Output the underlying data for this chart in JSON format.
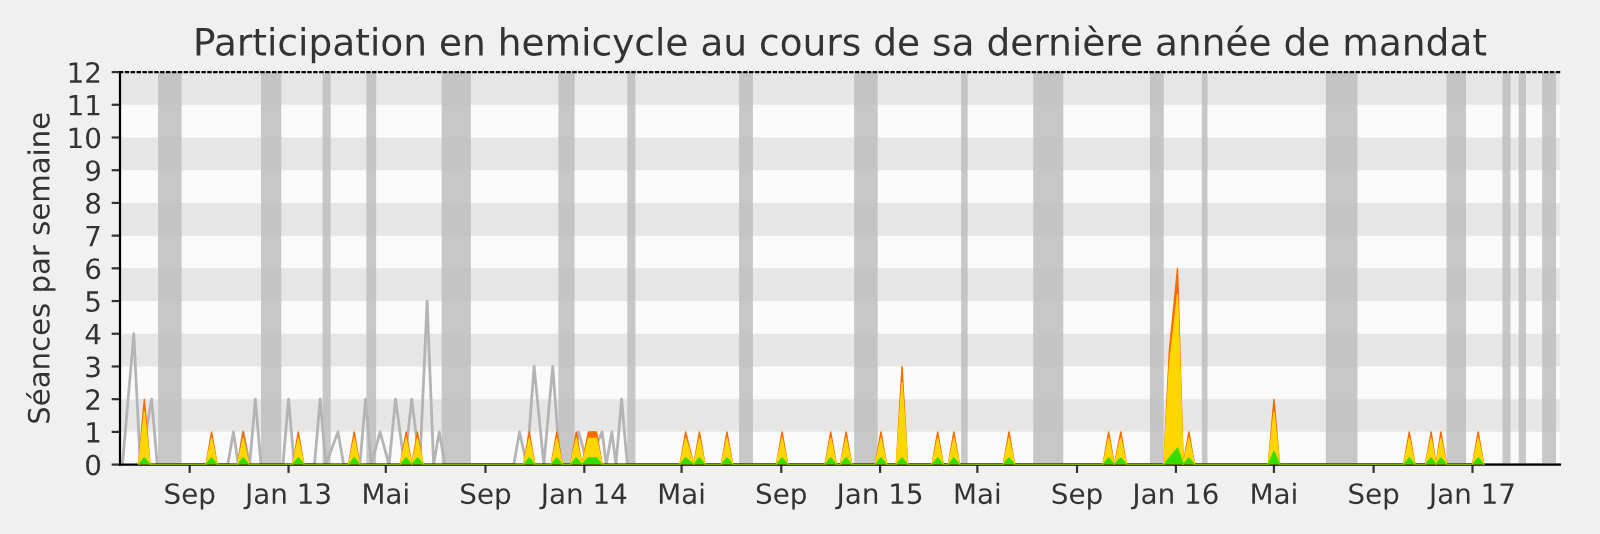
{
  "chart_data": {
    "type": "area",
    "title": "Participation en hemicycle au cours de sa dernière année de mandat",
    "ylabel": "Séances par semaine",
    "xlim": [
      "2012-06-07",
      "2017-04-19"
    ],
    "ylim": [
      0,
      12
    ],
    "yticks": [
      0,
      1,
      2,
      3,
      4,
      5,
      6,
      7,
      8,
      9,
      10,
      11,
      12
    ],
    "xticks": [
      {
        "value": "2012-09-01",
        "label": "Sep"
      },
      {
        "value": "2013-01-01",
        "label": "Jan 13"
      },
      {
        "value": "2013-05-01",
        "label": "Mai"
      },
      {
        "value": "2013-09-01",
        "label": "Sep"
      },
      {
        "value": "2014-01-01",
        "label": "Jan 14"
      },
      {
        "value": "2014-05-01",
        "label": "Mai"
      },
      {
        "value": "2014-09-01",
        "label": "Sep"
      },
      {
        "value": "2015-01-01",
        "label": "Jan 15"
      },
      {
        "value": "2015-05-01",
        "label": "Mai"
      },
      {
        "value": "2015-09-01",
        "label": "Sep"
      },
      {
        "value": "2016-01-01",
        "label": "Jan 16"
      },
      {
        "value": "2016-05-01",
        "label": "Mai"
      },
      {
        "value": "2016-09-01",
        "label": "Sep"
      },
      {
        "value": "2017-01-01",
        "label": "Jan 17"
      }
    ],
    "grid": false,
    "bands": [
      {
        "axis": "y",
        "from": 1,
        "to": 2,
        "color": "#e6e6e6"
      },
      {
        "axis": "y",
        "from": 3,
        "to": 4,
        "color": "#e6e6e6"
      },
      {
        "axis": "y",
        "from": 5,
        "to": 6,
        "color": "#e6e6e6"
      },
      {
        "axis": "y",
        "from": 7,
        "to": 8,
        "color": "#e6e6e6"
      },
      {
        "axis": "y",
        "from": 9,
        "to": 10,
        "color": "#e6e6e6"
      },
      {
        "axis": "y",
        "from": 11,
        "to": 12,
        "color": "#e6e6e6"
      },
      {
        "axis": "x",
        "from": "2012-07-24",
        "to": "2012-08-22",
        "color": "#bdbdbd"
      },
      {
        "axis": "x",
        "from": "2012-11-28",
        "to": "2012-12-23",
        "color": "#bdbdbd"
      },
      {
        "axis": "x",
        "from": "2013-02-12",
        "to": "2013-02-22",
        "color": "#bdbdbd"
      },
      {
        "axis": "x",
        "from": "2013-04-07",
        "to": "2013-04-19",
        "color": "#bdbdbd"
      },
      {
        "axis": "x",
        "from": "2013-07-09",
        "to": "2013-08-14",
        "color": "#bdbdbd"
      },
      {
        "axis": "x",
        "from": "2013-11-30",
        "to": "2013-12-20",
        "color": "#bdbdbd"
      },
      {
        "axis": "x",
        "from": "2014-02-23",
        "to": "2014-03-05",
        "color": "#bdbdbd"
      },
      {
        "axis": "x",
        "from": "2014-07-11",
        "to": "2014-07-28",
        "color": "#bdbdbd"
      },
      {
        "axis": "x",
        "from": "2014-11-30",
        "to": "2014-12-29",
        "color": "#bdbdbd"
      },
      {
        "axis": "x",
        "from": "2015-04-11",
        "to": "2015-04-19",
        "color": "#bdbdbd"
      },
      {
        "axis": "x",
        "from": "2015-07-09",
        "to": "2015-08-15",
        "color": "#bdbdbd"
      },
      {
        "axis": "x",
        "from": "2015-11-30",
        "to": "2015-12-17",
        "color": "#bdbdbd"
      },
      {
        "axis": "x",
        "from": "2016-02-02",
        "to": "2016-02-09",
        "color": "#bdbdbd"
      },
      {
        "axis": "x",
        "from": "2016-07-04",
        "to": "2016-08-12",
        "color": "#bdbdbd"
      },
      {
        "axis": "x",
        "from": "2016-11-30",
        "to": "2016-12-24",
        "color": "#bdbdbd"
      },
      {
        "axis": "x",
        "from": "2017-02-07",
        "to": "2017-02-17",
        "color": "#bdbdbd"
      },
      {
        "axis": "x",
        "from": "2017-02-27",
        "to": "2017-03-08",
        "color": "#bdbdbd"
      },
      {
        "axis": "x",
        "from": "2017-03-28",
        "to": "2017-04-14",
        "color": "#bdbdbd"
      }
    ],
    "x": [
      "2012-06-30",
      "2012-07-07",
      "2012-07-14",
      "2012-09-21",
      "2012-09-28",
      "2012-10-05",
      "2012-10-30",
      "2012-11-06",
      "2012-11-13",
      "2013-01-06",
      "2013-01-13",
      "2013-01-20",
      "2013-03-16",
      "2013-03-23",
      "2013-03-30",
      "2013-05-19",
      "2013-05-26",
      "2013-06-02",
      "2013-06-09",
      "2013-06-16",
      "2013-10-18",
      "2013-10-25",
      "2013-11-01",
      "2013-11-21",
      "2013-11-28",
      "2013-12-05",
      "2013-12-15",
      "2013-12-22",
      "2013-12-29",
      "2014-01-06",
      "2014-01-16",
      "2014-01-23",
      "2014-04-29",
      "2014-05-06",
      "2014-05-16",
      "2014-05-23",
      "2014-05-30",
      "2014-06-19",
      "2014-06-26",
      "2014-07-03",
      "2014-08-26",
      "2014-09-02",
      "2014-09-09",
      "2014-10-25",
      "2014-11-01",
      "2014-11-08",
      "2014-11-13",
      "2014-11-20",
      "2014-11-27",
      "2014-12-26",
      "2015-01-02",
      "2015-01-09",
      "2015-01-21",
      "2015-01-28",
      "2015-02-04",
      "2015-03-06",
      "2015-03-13",
      "2015-03-20",
      "2015-03-26",
      "2015-04-02",
      "2015-04-09",
      "2015-06-02",
      "2015-06-09",
      "2015-06-16",
      "2015-10-03",
      "2015-10-10",
      "2015-10-17",
      "2015-10-25",
      "2015-11-01",
      "2015-12-17",
      "2015-12-24",
      "2016-01-03",
      "2016-01-10",
      "2016-01-17",
      "2016-01-24",
      "2016-04-24",
      "2016-05-01",
      "2016-05-08",
      "2016-10-08",
      "2016-10-15",
      "2016-10-22",
      "2016-11-04",
      "2016-11-11",
      "2016-11-17",
      "2016-11-23",
      "2016-11-30",
      "2017-01-01",
      "2017-01-08",
      "2017-01-15"
    ],
    "series": [
      {
        "type": "line",
        "color": "#b4b4b4",
        "x": [
          "2012-06-10",
          "2012-06-24",
          "2012-07-02",
          "2012-07-16",
          "2012-07-23",
          "2012-10-18",
          "2012-10-25",
          "2012-10-31",
          "2012-11-06",
          "2012-11-14",
          "2012-11-21",
          "2012-11-28",
          "2012-12-25",
          "2013-01-01",
          "2013-01-08",
          "2013-02-02",
          "2013-02-09",
          "2013-02-16",
          "2013-03-03",
          "2013-03-10",
          "2013-03-30",
          "2013-04-06",
          "2013-04-13",
          "2013-04-24",
          "2013-05-05",
          "2013-05-13",
          "2013-05-24",
          "2013-06-02",
          "2013-06-12",
          "2013-06-21",
          "2013-06-29",
          "2013-07-06",
          "2013-07-13",
          "2013-10-06",
          "2013-10-13",
          "2013-10-22",
          "2013-10-31",
          "2013-11-12",
          "2013-11-23",
          "2013-12-02",
          "2013-12-18",
          "2013-12-25",
          "2014-01-05",
          "2014-01-23",
          "2014-01-28",
          "2014-02-04",
          "2014-02-09",
          "2014-02-16",
          "2014-02-23",
          "2017-04-19"
        ],
        "values": [
          0,
          4,
          0,
          2,
          0,
          0,
          1,
          0,
          1,
          0,
          2,
          0,
          0,
          2,
          0,
          0,
          2,
          0,
          1,
          0,
          0,
          2,
          0,
          1,
          0,
          2,
          0,
          2,
          0,
          5,
          0,
          1,
          0,
          0,
          1,
          0,
          3,
          0,
          3,
          0,
          0,
          1,
          0,
          1,
          0,
          1,
          0,
          2,
          0,
          0
        ]
      },
      {
        "color": "#ff6a00",
        "values": [
          0,
          2,
          0,
          0,
          1,
          0,
          0,
          1,
          0,
          0,
          1,
          0,
          0,
          1,
          0,
          0,
          1,
          0,
          1,
          0,
          0,
          1,
          0,
          0,
          1,
          0,
          0,
          1,
          0,
          1,
          1,
          0,
          0,
          1,
          0,
          1,
          0,
          0,
          1,
          0,
          0,
          1,
          0,
          0,
          1,
          0,
          0,
          1,
          0,
          0,
          1,
          0,
          0,
          3,
          0,
          0,
          1,
          0,
          0,
          1,
          0,
          0,
          1,
          0,
          0,
          1,
          0,
          1,
          0,
          0,
          3.5,
          6,
          0,
          1,
          0,
          0,
          2,
          0,
          0,
          1,
          0,
          0,
          1,
          0,
          1,
          0,
          0,
          1,
          0
        ]
      },
      {
        "color": "#ffd700",
        "values": [
          0,
          1.6,
          0,
          0,
          0.8,
          0,
          0,
          0.8,
          0,
          0,
          0.8,
          0,
          0,
          0.8,
          0,
          0,
          0.8,
          0,
          0.8,
          0,
          0,
          0.8,
          0,
          0,
          0.8,
          0,
          0,
          0.8,
          0,
          0.8,
          0.8,
          0,
          0,
          0.8,
          0,
          0.8,
          0,
          0,
          0.8,
          0,
          0,
          0.8,
          0,
          0,
          0.8,
          0,
          0,
          0.8,
          0,
          0,
          0.8,
          0,
          0,
          2.5,
          0,
          0,
          0.8,
          0,
          0,
          0.8,
          0,
          0,
          0.8,
          0,
          0,
          0.8,
          0,
          0.8,
          0,
          0,
          3,
          5.2,
          0,
          0.8,
          0,
          0,
          1.6,
          0,
          0,
          0.8,
          0,
          0,
          0.8,
          0,
          0.8,
          0,
          0,
          0.8,
          0
        ]
      },
      {
        "color": "#33dd00",
        "values": [
          0,
          0.2,
          0,
          0,
          0.2,
          0,
          0,
          0.2,
          0,
          0,
          0.2,
          0,
          0,
          0.2,
          0,
          0,
          0.2,
          0,
          0.2,
          0,
          0,
          0.2,
          0,
          0,
          0.2,
          0,
          0,
          0.2,
          0,
          0.2,
          0.2,
          0,
          0,
          0.2,
          0,
          0.2,
          0,
          0,
          0.2,
          0,
          0,
          0.2,
          0,
          0,
          0.2,
          0,
          0,
          0.2,
          0,
          0,
          0.2,
          0,
          0,
          0.2,
          0,
          0,
          0.2,
          0,
          0,
          0.2,
          0,
          0,
          0.2,
          0,
          0,
          0.2,
          0,
          0.2,
          0,
          0,
          0.2,
          0.5,
          0,
          0.2,
          0,
          0,
          0.4,
          0,
          0,
          0.2,
          0,
          0,
          0.2,
          0,
          0.2,
          0,
          0,
          0.2,
          0
        ]
      }
    ]
  }
}
